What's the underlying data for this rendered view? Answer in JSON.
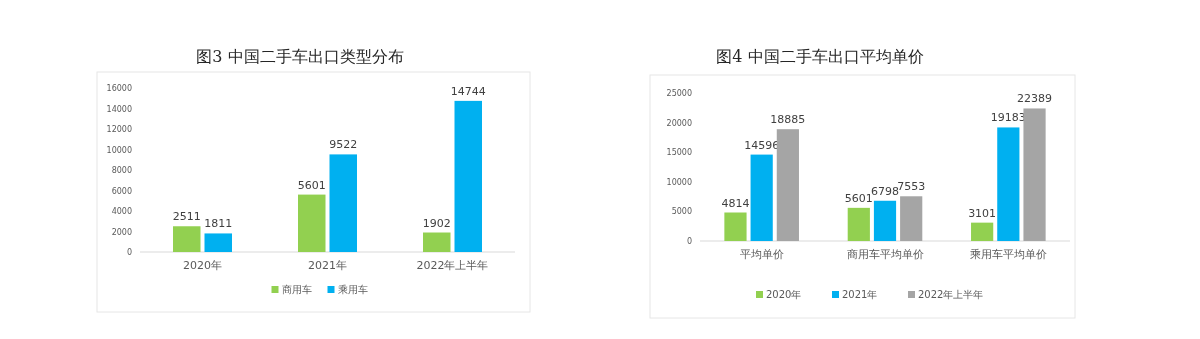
{
  "chart_data": [
    {
      "type": "bar",
      "title": "图3  中国二手车出口类型分布",
      "categories": [
        "2020年",
        "2021年",
        "2022年上半年"
      ],
      "series": [
        {
          "name": "商用车",
          "color": "#92d050",
          "values": [
            2511,
            5601,
            1902
          ]
        },
        {
          "name": "乘用车",
          "color": "#00b0f0",
          "values": [
            1811,
            9522,
            14744
          ]
        }
      ],
      "ylim": [
        0,
        16000
      ],
      "yticks": [
        0,
        2000,
        4000,
        6000,
        8000,
        10000,
        12000,
        14000,
        16000
      ],
      "data_labels": true,
      "legend": "bottom"
    },
    {
      "type": "bar",
      "title": "图4  中国二手车出口平均单价",
      "categories": [
        "平均单价",
        "商用车平均单价",
        "乘用车平均单价"
      ],
      "series": [
        {
          "name": "2020年",
          "color": "#92d050",
          "values": [
            4814,
            5601,
            3101
          ]
        },
        {
          "name": "2021年",
          "color": "#00b0f0",
          "values": [
            14596,
            6798,
            19183
          ]
        },
        {
          "name": "2022年上半年",
          "color": "#a5a5a5",
          "values": [
            18885,
            7553,
            22389
          ]
        }
      ],
      "ylim": [
        0,
        25000
      ],
      "yticks": [
        0,
        5000,
        10000,
        15000,
        20000,
        25000
      ],
      "data_labels": true,
      "legend": "bottom"
    }
  ]
}
